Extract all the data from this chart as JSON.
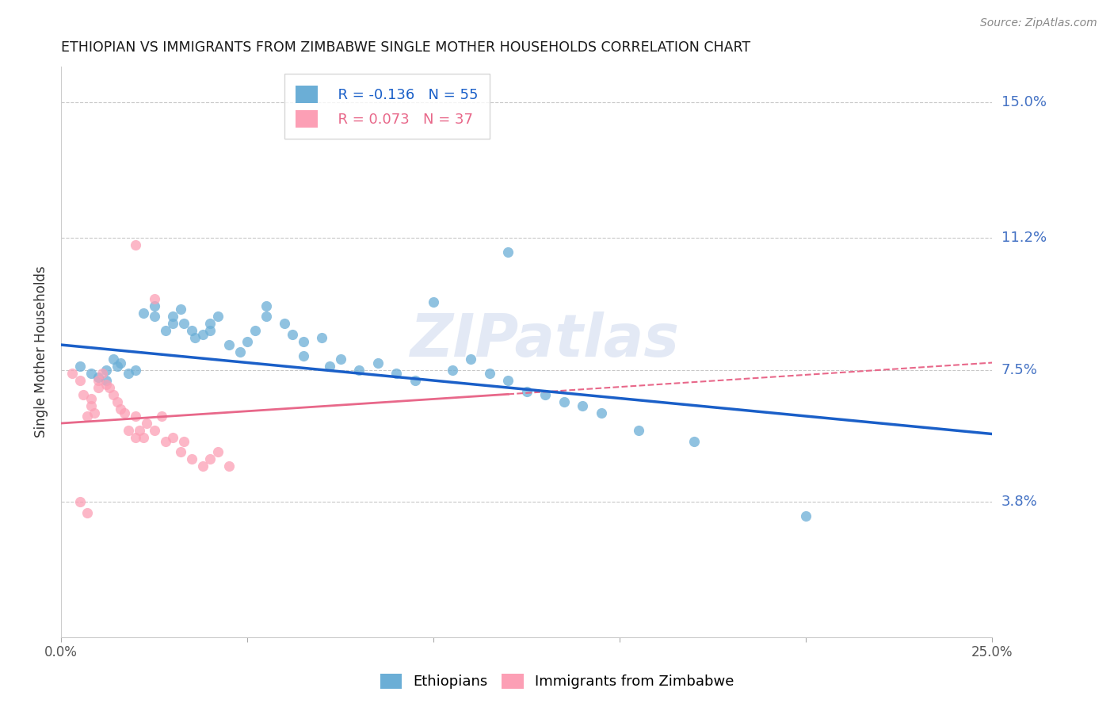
{
  "title": "ETHIOPIAN VS IMMIGRANTS FROM ZIMBABWE SINGLE MOTHER HOUSEHOLDS CORRELATION CHART",
  "source": "Source: ZipAtlas.com",
  "ylabel": "Single Mother Households",
  "xlabel": "",
  "xlim": [
    0.0,
    0.25
  ],
  "ylim": [
    0.0,
    0.16
  ],
  "yticks": [
    0.038,
    0.075,
    0.112,
    0.15
  ],
  "ytick_labels": [
    "3.8%",
    "7.5%",
    "11.2%",
    "15.0%"
  ],
  "xticks": [
    0.0,
    0.05,
    0.1,
    0.15,
    0.2,
    0.25
  ],
  "xtick_labels": [
    "0.0%",
    "",
    "",
    "",
    "",
    "25.0%"
  ],
  "watermark": "ZIPatlas",
  "blue_R": -0.136,
  "blue_N": 55,
  "pink_R": 0.073,
  "pink_N": 37,
  "blue_color": "#6baed6",
  "pink_color": "#fc9fb5",
  "blue_line_color": "#1a5fc8",
  "pink_line_color": "#e8688a",
  "axis_label_color": "#4472c4",
  "title_color": "#1a1a1a",
  "grid_color": "#c8c8c8",
  "blue_scatter_x": [
    0.005,
    0.008,
    0.01,
    0.012,
    0.012,
    0.014,
    0.015,
    0.016,
    0.018,
    0.02,
    0.022,
    0.025,
    0.025,
    0.028,
    0.03,
    0.03,
    0.032,
    0.033,
    0.035,
    0.036,
    0.038,
    0.04,
    0.04,
    0.042,
    0.045,
    0.048,
    0.05,
    0.052,
    0.055,
    0.055,
    0.06,
    0.062,
    0.065,
    0.065,
    0.07,
    0.072,
    0.075,
    0.08,
    0.085,
    0.09,
    0.095,
    0.1,
    0.105,
    0.11,
    0.115,
    0.12,
    0.125,
    0.13,
    0.135,
    0.14,
    0.145,
    0.155,
    0.17,
    0.2,
    0.12
  ],
  "blue_scatter_y": [
    0.076,
    0.074,
    0.073,
    0.075,
    0.072,
    0.078,
    0.076,
    0.077,
    0.074,
    0.075,
    0.091,
    0.093,
    0.09,
    0.086,
    0.088,
    0.09,
    0.092,
    0.088,
    0.086,
    0.084,
    0.085,
    0.088,
    0.086,
    0.09,
    0.082,
    0.08,
    0.083,
    0.086,
    0.09,
    0.093,
    0.088,
    0.085,
    0.079,
    0.083,
    0.084,
    0.076,
    0.078,
    0.075,
    0.077,
    0.074,
    0.072,
    0.094,
    0.075,
    0.078,
    0.074,
    0.072,
    0.069,
    0.068,
    0.066,
    0.065,
    0.063,
    0.058,
    0.055,
    0.034,
    0.108
  ],
  "pink_scatter_x": [
    0.003,
    0.005,
    0.006,
    0.007,
    0.008,
    0.008,
    0.009,
    0.01,
    0.01,
    0.011,
    0.012,
    0.013,
    0.014,
    0.015,
    0.016,
    0.017,
    0.018,
    0.02,
    0.02,
    0.021,
    0.022,
    0.023,
    0.025,
    0.027,
    0.028,
    0.03,
    0.032,
    0.033,
    0.035,
    0.038,
    0.04,
    0.042,
    0.045,
    0.02,
    0.025,
    0.005,
    0.007
  ],
  "pink_scatter_y": [
    0.074,
    0.072,
    0.068,
    0.062,
    0.065,
    0.067,
    0.063,
    0.072,
    0.07,
    0.074,
    0.071,
    0.07,
    0.068,
    0.066,
    0.064,
    0.063,
    0.058,
    0.056,
    0.062,
    0.058,
    0.056,
    0.06,
    0.058,
    0.062,
    0.055,
    0.056,
    0.052,
    0.055,
    0.05,
    0.048,
    0.05,
    0.052,
    0.048,
    0.11,
    0.095,
    0.038,
    0.035
  ],
  "blue_line_x0": 0.0,
  "blue_line_y0": 0.082,
  "blue_line_x1": 0.25,
  "blue_line_y1": 0.057,
  "pink_line_x0": 0.0,
  "pink_line_y0": 0.06,
  "pink_line_x1": 0.25,
  "pink_line_y1": 0.077,
  "pink_line_solid_x1": 0.12
}
